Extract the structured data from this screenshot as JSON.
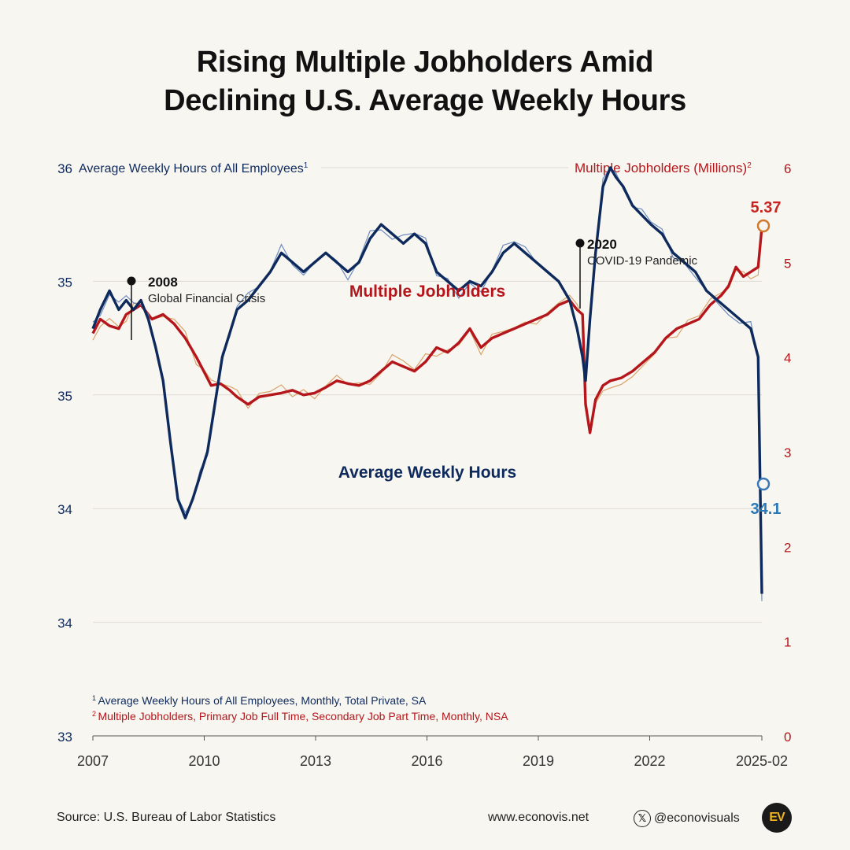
{
  "title": {
    "line1": "Rising Multiple Jobholders Amid",
    "line2": "Declining U.S. Average Weekly Hours"
  },
  "chart_data": {
    "type": "line",
    "x_ticks": [
      "2007",
      "2010",
      "2013",
      "2016",
      "2019",
      "2022",
      "2025-02"
    ],
    "y_left": {
      "label": "Average Weekly Hours of All Employees",
      "label_note": "1",
      "ticks": [
        "33",
        "34",
        "34",
        "35",
        "35",
        "36"
      ],
      "range": [
        33.8,
        35.0
      ]
    },
    "y_right": {
      "label": "Multiple Jobholders (Millions)",
      "label_note": "2",
      "ticks": [
        "0",
        "1",
        "2",
        "3",
        "4",
        "5",
        "6"
      ],
      "range": [
        0,
        6
      ]
    },
    "series": [
      {
        "name": "Multiple Jobholders",
        "axis": "right",
        "color": "#b5161b",
        "raw_color": "#d59b5c",
        "end_label": "5.37",
        "points": [
          [
            2007.0,
            4.25
          ],
          [
            2007.2,
            4.4
          ],
          [
            2007.45,
            4.33
          ],
          [
            2007.7,
            4.3
          ],
          [
            2007.9,
            4.45
          ],
          [
            2008.1,
            4.5
          ],
          [
            2008.3,
            4.55
          ],
          [
            2008.6,
            4.4
          ],
          [
            2008.9,
            4.45
          ],
          [
            2009.2,
            4.35
          ],
          [
            2009.5,
            4.2
          ],
          [
            2009.8,
            4.0
          ],
          [
            2010.0,
            3.85
          ],
          [
            2010.2,
            3.7
          ],
          [
            2010.45,
            3.72
          ],
          [
            2010.7,
            3.65
          ],
          [
            2010.9,
            3.58
          ],
          [
            2011.2,
            3.5
          ],
          [
            2011.5,
            3.58
          ],
          [
            2011.8,
            3.6
          ],
          [
            2012.1,
            3.62
          ],
          [
            2012.4,
            3.65
          ],
          [
            2012.7,
            3.6
          ],
          [
            2013.0,
            3.62
          ],
          [
            2013.3,
            3.68
          ],
          [
            2013.6,
            3.75
          ],
          [
            2013.9,
            3.72
          ],
          [
            2014.2,
            3.7
          ],
          [
            2014.5,
            3.75
          ],
          [
            2014.8,
            3.85
          ],
          [
            2015.1,
            3.95
          ],
          [
            2015.4,
            3.9
          ],
          [
            2015.7,
            3.85
          ],
          [
            2016.0,
            3.95
          ],
          [
            2016.3,
            4.1
          ],
          [
            2016.6,
            4.05
          ],
          [
            2016.9,
            4.15
          ],
          [
            2017.2,
            4.3
          ],
          [
            2017.5,
            4.1
          ],
          [
            2017.8,
            4.2
          ],
          [
            2018.1,
            4.25
          ],
          [
            2018.4,
            4.3
          ],
          [
            2018.7,
            4.35
          ],
          [
            2019.0,
            4.4
          ],
          [
            2019.3,
            4.45
          ],
          [
            2019.6,
            4.55
          ],
          [
            2019.9,
            4.6
          ],
          [
            2020.1,
            4.5
          ],
          [
            2020.25,
            4.45
          ],
          [
            2020.33,
            3.5
          ],
          [
            2020.45,
            3.2
          ],
          [
            2020.6,
            3.55
          ],
          [
            2020.8,
            3.7
          ],
          [
            2021.0,
            3.75
          ],
          [
            2021.3,
            3.78
          ],
          [
            2021.6,
            3.85
          ],
          [
            2021.9,
            3.95
          ],
          [
            2022.2,
            4.05
          ],
          [
            2022.5,
            4.2
          ],
          [
            2022.8,
            4.3
          ],
          [
            2023.1,
            4.35
          ],
          [
            2023.4,
            4.4
          ],
          [
            2023.7,
            4.55
          ],
          [
            2024.0,
            4.65
          ],
          [
            2024.2,
            4.75
          ],
          [
            2024.4,
            4.95
          ],
          [
            2024.6,
            4.85
          ],
          [
            2024.8,
            4.9
          ],
          [
            2025.0,
            4.95
          ],
          [
            2025.1,
            5.37
          ]
        ]
      },
      {
        "name": "Average Weekly Hours",
        "axis": "left",
        "color": "#0e2a5c",
        "raw_color": "#5d7fb8",
        "end_label": "34.1",
        "points": [
          [
            2007.0,
            34.66
          ],
          [
            2007.2,
            34.7
          ],
          [
            2007.45,
            34.74
          ],
          [
            2007.7,
            34.7
          ],
          [
            2007.9,
            34.72
          ],
          [
            2008.1,
            34.7
          ],
          [
            2008.3,
            34.72
          ],
          [
            2008.5,
            34.68
          ],
          [
            2008.7,
            34.62
          ],
          [
            2008.9,
            34.55
          ],
          [
            2009.1,
            34.42
          ],
          [
            2009.3,
            34.3
          ],
          [
            2009.5,
            34.26
          ],
          [
            2009.7,
            34.3
          ],
          [
            2009.9,
            34.35
          ],
          [
            2010.1,
            34.4
          ],
          [
            2010.3,
            34.5
          ],
          [
            2010.5,
            34.6
          ],
          [
            2010.7,
            34.65
          ],
          [
            2010.9,
            34.7
          ],
          [
            2011.2,
            34.72
          ],
          [
            2011.5,
            34.75
          ],
          [
            2011.8,
            34.78
          ],
          [
            2012.1,
            34.82
          ],
          [
            2012.4,
            34.8
          ],
          [
            2012.7,
            34.78
          ],
          [
            2013.0,
            34.8
          ],
          [
            2013.3,
            34.82
          ],
          [
            2013.6,
            34.8
          ],
          [
            2013.9,
            34.78
          ],
          [
            2014.2,
            34.8
          ],
          [
            2014.5,
            34.85
          ],
          [
            2014.8,
            34.88
          ],
          [
            2015.1,
            34.86
          ],
          [
            2015.4,
            34.84
          ],
          [
            2015.7,
            34.86
          ],
          [
            2016.0,
            34.84
          ],
          [
            2016.3,
            34.78
          ],
          [
            2016.6,
            34.76
          ],
          [
            2016.9,
            34.74
          ],
          [
            2017.2,
            34.76
          ],
          [
            2017.5,
            34.75
          ],
          [
            2017.8,
            34.78
          ],
          [
            2018.1,
            34.82
          ],
          [
            2018.4,
            34.84
          ],
          [
            2018.7,
            34.82
          ],
          [
            2019.0,
            34.8
          ],
          [
            2019.3,
            34.78
          ],
          [
            2019.6,
            34.76
          ],
          [
            2019.9,
            34.72
          ],
          [
            2020.1,
            34.66
          ],
          [
            2020.25,
            34.6
          ],
          [
            2020.33,
            34.55
          ],
          [
            2020.45,
            34.68
          ],
          [
            2020.6,
            34.82
          ],
          [
            2020.8,
            34.96
          ],
          [
            2021.0,
            35.0
          ],
          [
            2021.15,
            34.98
          ],
          [
            2021.35,
            34.96
          ],
          [
            2021.6,
            34.92
          ],
          [
            2021.85,
            34.9
          ],
          [
            2022.1,
            34.88
          ],
          [
            2022.4,
            34.86
          ],
          [
            2022.7,
            34.82
          ],
          [
            2023.0,
            34.8
          ],
          [
            2023.3,
            34.78
          ],
          [
            2023.6,
            34.74
          ],
          [
            2023.9,
            34.72
          ],
          [
            2024.2,
            34.7
          ],
          [
            2024.5,
            34.68
          ],
          [
            2024.8,
            34.66
          ],
          [
            2025.0,
            34.6
          ],
          [
            2025.1,
            34.1
          ]
        ]
      }
    ],
    "annotations": [
      {
        "year": "2008",
        "text": "Global Financial Crisis"
      },
      {
        "year": "2020",
        "text": "COVID-19 Pandemic"
      }
    ],
    "footnotes": [
      {
        "num": "1",
        "text": "Average Weekly Hours of All Employees, Monthly, Total Private, SA"
      },
      {
        "num": "2",
        "text": "Multiple Jobholders, Primary Job Full Time, Secondary Job Part Time, Monthly, NSA"
      }
    ]
  },
  "footer": {
    "source": "Source: U.S. Bureau of Labor Statistics",
    "website": "www.econovis.net",
    "handle": "@econovisuals",
    "x_icon": "x-logo-icon",
    "brand_mark": "EV"
  },
  "colors": {
    "background": "#f8f6f1",
    "navy": "#0e2a5c",
    "red": "#b5161b",
    "orange": "#d07a2e",
    "blue_end": "#3a78b5"
  }
}
